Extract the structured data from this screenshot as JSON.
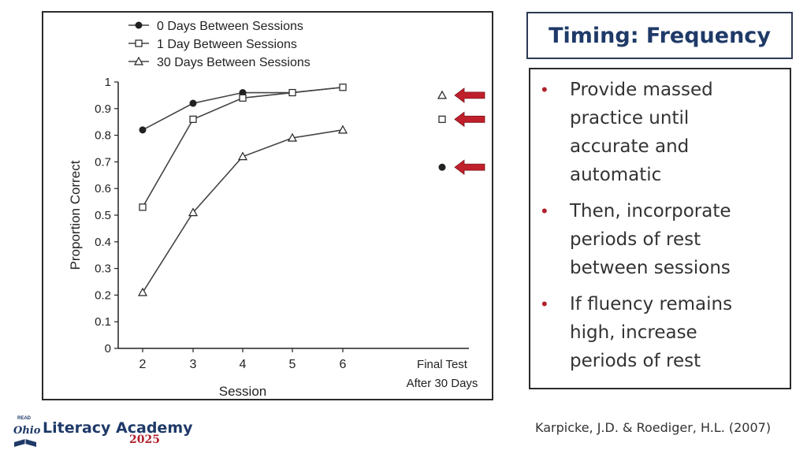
{
  "slide": {
    "title": "Timing: Frequency",
    "bullets": [
      "Provide massed practice until accurate and automatic",
      "Then, incorporate periods of rest between sessions",
      "If fluency remains high, increase periods of rest"
    ],
    "citation": "Karpicke, J.D. & Roediger, H.L. (2007)"
  },
  "logo": {
    "read": "READ",
    "ohio": "Ohio",
    "name": "Literacy Academy",
    "year": "2025"
  },
  "colors": {
    "title": "#1f3a68",
    "bullet": "#b0202b",
    "arrow": "#c0202b",
    "ink": "#222222"
  },
  "chart_data": {
    "type": "line",
    "xlabel": "Session",
    "ylabel": "Proportion Correct",
    "ylim": [
      0,
      1
    ],
    "yticks": [
      "0",
      "0.1",
      "0.2",
      "0.3",
      "0.4",
      "0.5",
      "0.6",
      "0.7",
      "0.8",
      "0.9",
      "1"
    ],
    "xticks": [
      "2",
      "3",
      "4",
      "5",
      "6"
    ],
    "final_label": [
      "Final Test",
      "After 30 Days"
    ],
    "x": [
      2,
      3,
      4,
      5,
      6
    ],
    "series": [
      {
        "name": "0 Days Between Sessions",
        "marker": "circle",
        "values": [
          0.82,
          0.92,
          0.96,
          0.96,
          0.98
        ],
        "final": 0.68
      },
      {
        "name": "1 Day Between Sessions",
        "marker": "square",
        "values": [
          0.53,
          0.86,
          0.94,
          0.96,
          0.98
        ],
        "final": 0.86
      },
      {
        "name": "30 Days Between Sessions",
        "marker": "triangle",
        "values": [
          0.21,
          0.51,
          0.72,
          0.79,
          0.82
        ],
        "final": 0.95
      }
    ],
    "legend": "top-left",
    "grid": false
  }
}
